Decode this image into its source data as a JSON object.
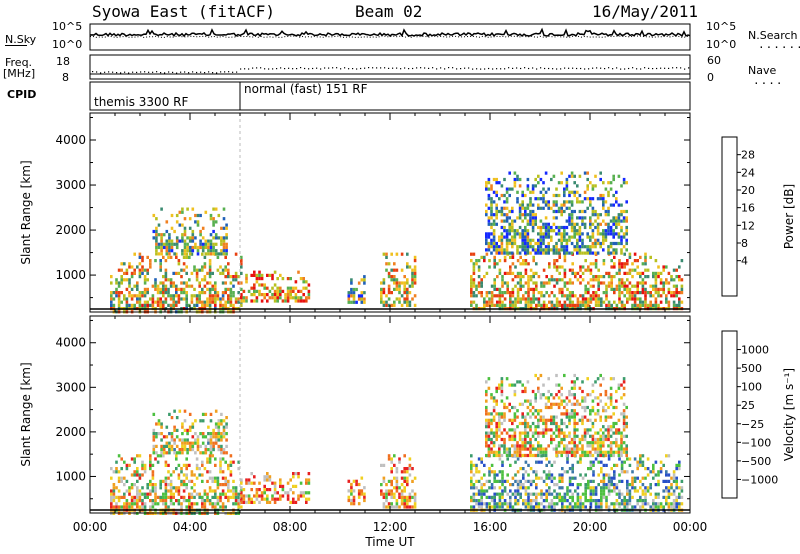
{
  "header": {
    "station": "Syowa East (fitACF)",
    "beam": "Beam 02",
    "date": "16/May/2011"
  },
  "top_panels": {
    "nsky_label": "N.Sky",
    "nsky_ticks": [
      "10^5",
      "10^0"
    ],
    "nsearch_label": "N.Search",
    "nsearch_ticks": [
      "10^5",
      "10^0"
    ],
    "freq_label_1": "Freq.",
    "freq_label_2": "[MHz]",
    "freq_ticks": [
      "18",
      "8"
    ],
    "nave_label": "Nave",
    "nave_ticks": [
      "60",
      "0"
    ],
    "cpid_label": "CPID",
    "cpid_segments": [
      "themis 3300 RF",
      "normal (fast) 151 RF"
    ]
  },
  "chart_data": [
    {
      "type": "heatmap",
      "name": "power",
      "ylabel": "Slant Range [km]",
      "xlabel": "",
      "x_ticks": [
        "00:00",
        "04:00",
        "08:00",
        "12:00",
        "16:00",
        "20:00",
        "00:00"
      ],
      "xlim_hours": [
        0,
        24
      ],
      "y_ticks": [
        1000,
        2000,
        3000,
        4000
      ],
      "ylim": [
        180,
        4600
      ],
      "colorbar_label": "Power [dB]",
      "colorbar_ticks": [
        "28",
        "24",
        "20",
        "16",
        "12",
        "8",
        "4"
      ],
      "colors": [
        "#1428ff",
        "#2060b8",
        "#3a8a70",
        "#58b050",
        "#b8c020",
        "#f0c020",
        "#f08020",
        "#e84010",
        "#e81010"
      ],
      "activity_regions": [
        {
          "t0": 0.8,
          "t1": 6.0,
          "r0": 200,
          "r1": 1500,
          "level": 0.55
        },
        {
          "t0": 2.5,
          "t1": 5.5,
          "r0": 1500,
          "r1": 2500,
          "level": 0.4
        },
        {
          "t0": 6.0,
          "t1": 8.8,
          "r0": 400,
          "r1": 1100,
          "level": 0.7
        },
        {
          "t0": 10.3,
          "t1": 11.0,
          "r0": 400,
          "r1": 1000,
          "level": 0.35
        },
        {
          "t0": 11.6,
          "t1": 13.0,
          "r0": 300,
          "r1": 1500,
          "level": 0.55
        },
        {
          "t0": 15.2,
          "t1": 23.7,
          "r0": 250,
          "r1": 1500,
          "level": 0.6
        },
        {
          "t0": 15.8,
          "t1": 21.5,
          "r0": 1500,
          "r1": 3300,
          "level": 0.35
        }
      ]
    },
    {
      "type": "heatmap",
      "name": "velocity",
      "ylabel": "Slant Range [km]",
      "xlabel": "Time UT",
      "x_ticks": [
        "00:00",
        "04:00",
        "08:00",
        "12:00",
        "16:00",
        "20:00",
        "00:00"
      ],
      "xlim_hours": [
        0,
        24
      ],
      "y_ticks": [
        1000,
        2000,
        3000,
        4000
      ],
      "ylim": [
        180,
        4600
      ],
      "colorbar_label": "Velocity [m s⁻¹]",
      "colorbar_ticks": [
        "1000",
        "500",
        "100",
        "25",
        "−25",
        "−100",
        "−500",
        "−1000"
      ],
      "colors": [
        "#2850c8",
        "#3c78a8",
        "#3c9c6c",
        "#4cc040",
        "#c0c0c0",
        "#f0d020",
        "#f0a020",
        "#f07020",
        "#e82020"
      ],
      "activity_regions": [
        {
          "t0": 0.8,
          "t1": 6.0,
          "r0": 200,
          "r1": 1500,
          "level": 0.6
        },
        {
          "t0": 2.5,
          "t1": 5.5,
          "r0": 1500,
          "r1": 2500,
          "level": 0.55
        },
        {
          "t0": 6.0,
          "t1": 8.8,
          "r0": 400,
          "r1": 1100,
          "level": 0.75
        },
        {
          "t0": 10.3,
          "t1": 11.0,
          "r0": 400,
          "r1": 1000,
          "level": 0.7
        },
        {
          "t0": 11.6,
          "t1": 13.0,
          "r0": 300,
          "r1": 1500,
          "level": 0.7
        },
        {
          "t0": 15.2,
          "t1": 23.7,
          "r0": 250,
          "r1": 1500,
          "level": 0.35
        },
        {
          "t0": 15.8,
          "t1": 21.5,
          "r0": 1500,
          "r1": 3300,
          "level": 0.6
        }
      ]
    }
  ]
}
